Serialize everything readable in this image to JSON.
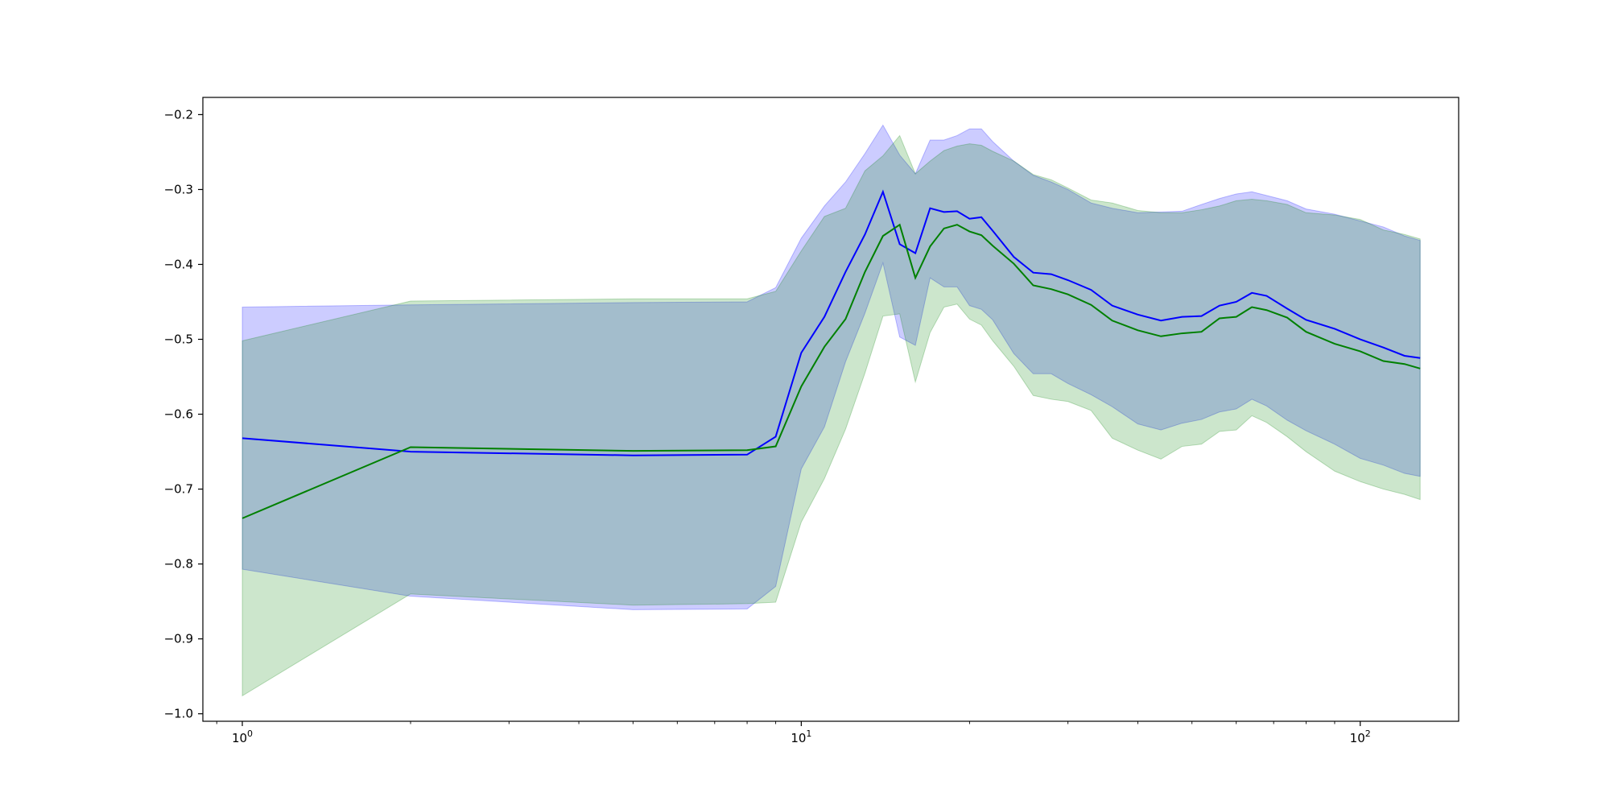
{
  "chart_data": {
    "type": "line",
    "title": "",
    "xlabel": "",
    "ylabel": "",
    "xscale": "log",
    "xlim": [
      0.85,
      150
    ],
    "ylim": [
      -1.01,
      -0.177
    ],
    "grid": false,
    "x_ticks": [
      {
        "value": 1,
        "mantissa": "10",
        "exponent": "0"
      },
      {
        "value": 10,
        "mantissa": "10",
        "exponent": "1"
      },
      {
        "value": 100,
        "mantissa": "10",
        "exponent": "2"
      }
    ],
    "y_ticks": [
      {
        "value": -0.2,
        "label": "−0.2"
      },
      {
        "value": -0.3,
        "label": "−0.3"
      },
      {
        "value": -0.4,
        "label": "−0.4"
      },
      {
        "value": -0.5,
        "label": "−0.5"
      },
      {
        "value": -0.6,
        "label": "−0.6"
      },
      {
        "value": -0.7,
        "label": "−0.7"
      },
      {
        "value": -0.8,
        "label": "−0.8"
      },
      {
        "value": -0.9,
        "label": "−0.9"
      },
      {
        "value": -1.0,
        "label": "−1.0"
      }
    ],
    "series": [
      {
        "color": "#0000ff",
        "band_color": "#0000ff",
        "band_opacity": 0.2,
        "points": [
          [
            1,
            -0.632,
            -0.457,
            -0.807
          ],
          [
            2,
            -0.65,
            -0.454,
            -0.843
          ],
          [
            5,
            -0.655,
            -0.451,
            -0.861
          ],
          [
            8,
            -0.654,
            -0.45,
            -0.86
          ],
          [
            9,
            -0.63,
            -0.431,
            -0.83
          ],
          [
            10,
            -0.518,
            -0.365,
            -0.673
          ],
          [
            11,
            -0.47,
            -0.322,
            -0.617
          ],
          [
            12,
            -0.41,
            -0.29,
            -0.53
          ],
          [
            13,
            -0.36,
            -0.252,
            -0.465
          ],
          [
            14,
            -0.303,
            -0.214,
            -0.398
          ],
          [
            15,
            -0.373,
            -0.254,
            -0.497
          ],
          [
            16,
            -0.385,
            -0.279,
            -0.508
          ],
          [
            17,
            -0.325,
            -0.234,
            -0.418
          ],
          [
            18,
            -0.33,
            -0.234,
            -0.43
          ],
          [
            19,
            -0.329,
            -0.228,
            -0.43
          ],
          [
            20,
            -0.339,
            -0.219,
            -0.455
          ],
          [
            21,
            -0.337,
            -0.219,
            -0.46
          ],
          [
            22,
            -0.355,
            -0.236,
            -0.474
          ],
          [
            24,
            -0.39,
            -0.262,
            -0.519
          ],
          [
            26,
            -0.411,
            -0.281,
            -0.546
          ],
          [
            28,
            -0.413,
            -0.29,
            -0.546
          ],
          [
            30,
            -0.421,
            -0.3,
            -0.559
          ],
          [
            33,
            -0.434,
            -0.318,
            -0.574
          ],
          [
            36,
            -0.455,
            -0.325,
            -0.59
          ],
          [
            40,
            -0.467,
            -0.331,
            -0.613
          ],
          [
            44,
            -0.475,
            -0.33,
            -0.621
          ],
          [
            48,
            -0.47,
            -0.329,
            -0.612
          ],
          [
            52,
            -0.469,
            -0.32,
            -0.607
          ],
          [
            56,
            -0.455,
            -0.312,
            -0.597
          ],
          [
            60,
            -0.45,
            -0.306,
            -0.593
          ],
          [
            64,
            -0.438,
            -0.303,
            -0.58
          ],
          [
            68,
            -0.442,
            -0.308,
            -0.589
          ],
          [
            74,
            -0.459,
            -0.315,
            -0.608
          ],
          [
            80,
            -0.474,
            -0.326,
            -0.622
          ],
          [
            90,
            -0.486,
            -0.333,
            -0.64
          ],
          [
            100,
            -0.5,
            -0.342,
            -0.659
          ],
          [
            110,
            -0.511,
            -0.35,
            -0.668
          ],
          [
            120,
            -0.522,
            -0.362,
            -0.679
          ],
          [
            128,
            -0.525,
            -0.368,
            -0.683
          ]
        ]
      },
      {
        "color": "#008000",
        "band_color": "#008000",
        "band_opacity": 0.2,
        "points": [
          [
            1,
            -0.739,
            -0.502,
            -0.976
          ],
          [
            2,
            -0.644,
            -0.449,
            -0.84
          ],
          [
            5,
            -0.649,
            -0.446,
            -0.855
          ],
          [
            8,
            -0.648,
            -0.446,
            -0.853
          ],
          [
            9,
            -0.643,
            -0.436,
            -0.851
          ],
          [
            10,
            -0.563,
            -0.382,
            -0.744
          ],
          [
            11,
            -0.51,
            -0.336,
            -0.686
          ],
          [
            12,
            -0.473,
            -0.325,
            -0.62
          ],
          [
            13,
            -0.41,
            -0.275,
            -0.545
          ],
          [
            14,
            -0.362,
            -0.255,
            -0.469
          ],
          [
            15,
            -0.347,
            -0.228,
            -0.466
          ],
          [
            16,
            -0.418,
            -0.279,
            -0.557
          ],
          [
            17,
            -0.376,
            -0.262,
            -0.491
          ],
          [
            18,
            -0.352,
            -0.248,
            -0.457
          ],
          [
            19,
            -0.347,
            -0.242,
            -0.453
          ],
          [
            20,
            -0.356,
            -0.239,
            -0.473
          ],
          [
            21,
            -0.361,
            -0.241,
            -0.481
          ],
          [
            22,
            -0.375,
            -0.249,
            -0.502
          ],
          [
            24,
            -0.399,
            -0.262,
            -0.536
          ],
          [
            26,
            -0.428,
            -0.28,
            -0.575
          ],
          [
            28,
            -0.433,
            -0.287,
            -0.58
          ],
          [
            30,
            -0.44,
            -0.298,
            -0.583
          ],
          [
            33,
            -0.454,
            -0.314,
            -0.595
          ],
          [
            36,
            -0.475,
            -0.318,
            -0.632
          ],
          [
            40,
            -0.488,
            -0.328,
            -0.648
          ],
          [
            44,
            -0.496,
            -0.331,
            -0.66
          ],
          [
            48,
            -0.492,
            -0.331,
            -0.643
          ],
          [
            52,
            -0.49,
            -0.327,
            -0.64
          ],
          [
            56,
            -0.472,
            -0.322,
            -0.623
          ],
          [
            60,
            -0.47,
            -0.315,
            -0.621
          ],
          [
            64,
            -0.457,
            -0.313,
            -0.602
          ],
          [
            68,
            -0.461,
            -0.315,
            -0.611
          ],
          [
            74,
            -0.471,
            -0.32,
            -0.63
          ],
          [
            80,
            -0.49,
            -0.331,
            -0.65
          ],
          [
            90,
            -0.506,
            -0.334,
            -0.676
          ],
          [
            100,
            -0.516,
            -0.34,
            -0.69
          ],
          [
            110,
            -0.529,
            -0.354,
            -0.7
          ],
          [
            120,
            -0.533,
            -0.36,
            -0.707
          ],
          [
            128,
            -0.539,
            -0.366,
            -0.714
          ]
        ]
      }
    ]
  }
}
